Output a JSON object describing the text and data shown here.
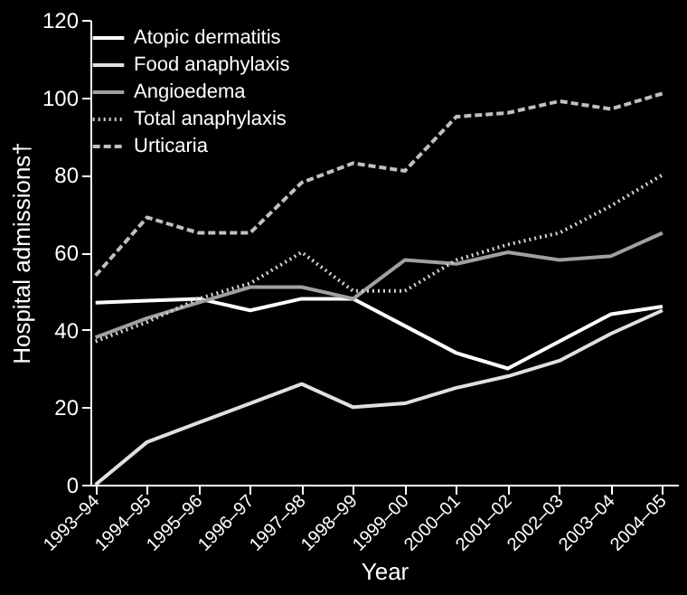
{
  "chart_data": {
    "type": "line",
    "xlabel": "Year",
    "ylabel": "Hospital admissions†",
    "categories": [
      "1993–94",
      "1994–95",
      "1995–96",
      "1996–97",
      "1997–98",
      "1998–99",
      "1999–00",
      "2000–01",
      "2001–02",
      "2002–03",
      "2003–04",
      "2004–05"
    ],
    "ylim": [
      0,
      120
    ],
    "yticks": [
      0,
      20,
      40,
      60,
      80,
      100,
      120
    ],
    "grid": false,
    "legend": "top left",
    "marker": "none",
    "series": [
      {
        "name": "Atopic dermatitis",
        "color": "#ffffff",
        "line_style": "solid",
        "values": [
          47,
          47.5,
          48,
          45,
          48,
          48,
          41,
          34,
          30,
          37,
          44,
          46
        ]
      },
      {
        "name": "Food anaphylaxis",
        "color": "#e0e0e0",
        "line_style": "solid",
        "values": [
          0,
          11,
          16,
          21,
          26,
          20,
          21,
          25,
          28,
          32,
          39,
          45
        ]
      },
      {
        "name": "Angioedema",
        "color": "#a0a0a0",
        "line_style": "solid",
        "values": [
          38,
          43,
          47,
          51,
          51,
          48,
          58,
          57,
          60,
          58,
          59,
          65
        ]
      },
      {
        "name": "Total anaphylaxis",
        "color": "#d0d0d0",
        "line_style": "dotted",
        "values": [
          37,
          42,
          48,
          52,
          60,
          50,
          50,
          58,
          62,
          65,
          72,
          80
        ]
      },
      {
        "name": "Urticaria",
        "color": "#c0c0c0",
        "line_style": "dashed",
        "values": [
          54,
          69,
          65,
          65,
          78,
          83,
          81,
          95,
          96,
          99,
          97,
          101
        ]
      }
    ]
  }
}
